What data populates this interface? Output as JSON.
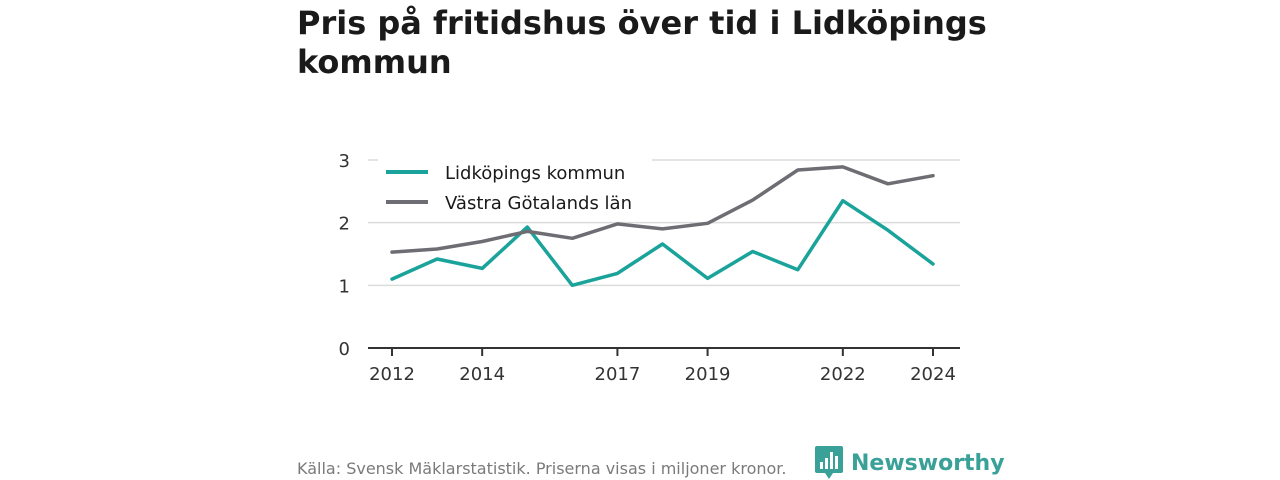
{
  "title": "Pris på fritidshus över tid i Lidköpings kommun",
  "source_text": "Källa: Svensk Mäklarstatistik. Priserna visas i miljoner kronor.",
  "brand": {
    "name": "Newsworthy",
    "icon": "newsworthy-bar-chart-icon",
    "color": "#3aa198"
  },
  "chart_data": {
    "type": "line",
    "x": [
      2012,
      2013,
      2014,
      2015,
      2016,
      2017,
      2018,
      2019,
      2020,
      2021,
      2022,
      2023,
      2024
    ],
    "x_ticks": [
      "2012",
      "2014",
      "2017",
      "2019",
      "2022",
      "2024"
    ],
    "y_ticks": [
      "0",
      "1",
      "2",
      "3"
    ],
    "ylim": [
      0,
      3
    ],
    "xlim": [
      2012,
      2024
    ],
    "grid": true,
    "legend_position": "top-left",
    "series": [
      {
        "name": "Lidköpings kommun",
        "color": "#1aa39a",
        "values": [
          1.1,
          1.42,
          1.27,
          1.93,
          1.0,
          1.19,
          1.66,
          1.11,
          1.54,
          1.25,
          2.35,
          1.88,
          1.34
        ]
      },
      {
        "name": "Västra Götalands län",
        "color": "#6e6d73",
        "values": [
          1.53,
          1.58,
          1.7,
          1.86,
          1.75,
          1.98,
          1.9,
          1.99,
          2.36,
          2.84,
          2.89,
          2.62,
          2.75
        ]
      }
    ]
  }
}
